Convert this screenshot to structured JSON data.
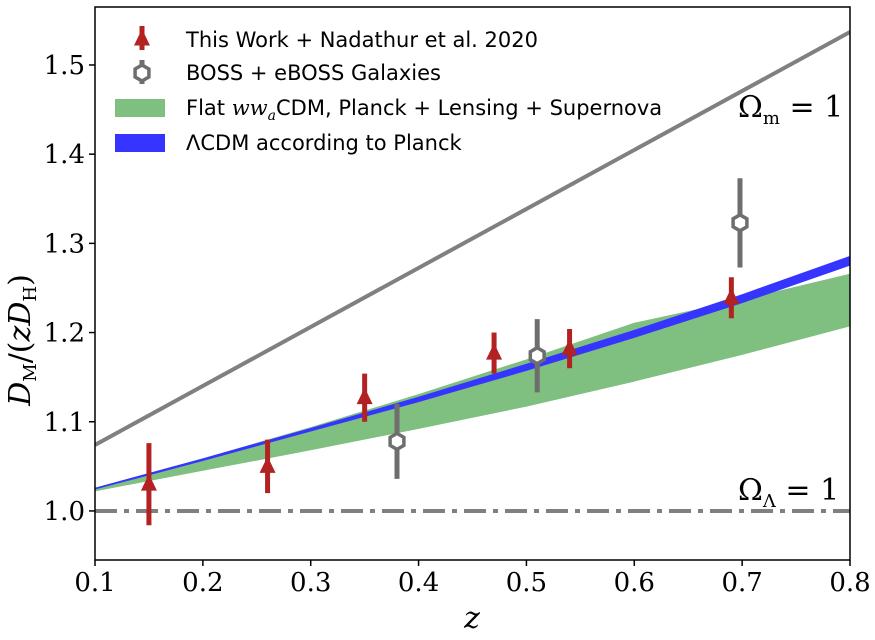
{
  "chart_data": {
    "type": "scatter",
    "xlabel": "z",
    "ylabel": "D_M/(zD_H)",
    "xlim": [
      0.1,
      0.8
    ],
    "ylim": [
      0.945,
      1.565
    ],
    "x_ticks": [
      0.1,
      0.2,
      0.3,
      0.4,
      0.5,
      0.6,
      0.7,
      0.8
    ],
    "x_tick_labels": [
      "0.1",
      "0.2",
      "0.3",
      "0.4",
      "0.5",
      "0.6",
      "0.7",
      "0.8"
    ],
    "y_ticks": [
      1.0,
      1.1,
      1.2,
      1.3,
      1.4,
      1.5
    ],
    "y_tick_labels": [
      "1.0",
      "1.1",
      "1.2",
      "1.3",
      "1.4",
      "1.5"
    ],
    "grid": false,
    "legend_position": "top-left",
    "series": [
      {
        "name": "This Work + Nadathur et al. 2020",
        "kind": "errorbar",
        "marker": "triangle",
        "color": "#b22222",
        "points": [
          {
            "x": 0.15,
            "y": 1.03,
            "err": 0.046
          },
          {
            "x": 0.26,
            "y": 1.05,
            "err": 0.03
          },
          {
            "x": 0.35,
            "y": 1.127,
            "err": 0.027
          },
          {
            "x": 0.47,
            "y": 1.177,
            "err": 0.023
          },
          {
            "x": 0.54,
            "y": 1.182,
            "err": 0.022
          },
          {
            "x": 0.69,
            "y": 1.239,
            "err": 0.023
          }
        ]
      },
      {
        "name": "BOSS + eBOSS Galaxies",
        "kind": "errorbar",
        "marker": "hexagon-open",
        "color": "#6e6e6e",
        "points": [
          {
            "x": 0.38,
            "y": 1.078,
            "err": 0.042
          },
          {
            "x": 0.51,
            "y": 1.174,
            "err": 0.041
          },
          {
            "x": 0.698,
            "y": 1.323,
            "err": 0.05
          }
        ]
      },
      {
        "name": "Flat ww_aCDM, Planck + Lensing + Supernova",
        "kind": "band",
        "color": "#7fbf7f",
        "x": [
          0.1,
          0.2,
          0.3,
          0.4,
          0.5,
          0.6,
          0.7,
          0.8
        ],
        "lower": [
          1.022,
          1.045,
          1.068,
          1.092,
          1.117,
          1.145,
          1.175,
          1.207
        ],
        "upper": [
          1.026,
          1.059,
          1.094,
          1.131,
          1.17,
          1.211,
          1.237,
          1.266
        ]
      },
      {
        "name": "ΛCDM according to Planck",
        "kind": "band",
        "color": "#3535ff",
        "x": [
          0.1,
          0.2,
          0.3,
          0.4,
          0.5,
          0.6,
          0.7,
          0.8
        ],
        "lower": [
          1.024,
          1.056,
          1.089,
          1.122,
          1.157,
          1.194,
          1.233,
          1.275
        ],
        "upper": [
          1.026,
          1.059,
          1.093,
          1.128,
          1.165,
          1.203,
          1.243,
          1.286
        ]
      },
      {
        "name": "Omega_m = 1",
        "kind": "line",
        "color": "#808080",
        "x": [
          0.1,
          0.8
        ],
        "y": [
          1.074,
          1.537
        ]
      },
      {
        "name": "Omega_Lambda = 1",
        "kind": "line",
        "style": "dashdot",
        "color": "#808080",
        "x": [
          0.1,
          0.8
        ],
        "y": [
          1.0,
          1.0
        ]
      }
    ],
    "legend": [
      {
        "label": "This Work + Nadathur et al. 2020",
        "icon": "triangle-errorbar"
      },
      {
        "label": "BOSS + eBOSS Galaxies",
        "icon": "hexagon-errorbar"
      },
      {
        "label_prefix": "Flat ",
        "label_math": "ww",
        "label_sub": "a",
        "label_suffix": "CDM, Planck + Lensing + Supernova",
        "icon": "green-patch"
      },
      {
        "label": "ΛCDM according to Planck",
        "icon": "blue-patch"
      }
    ],
    "annotations": [
      {
        "base": "Ω",
        "sub": "m",
        "rest": " = 1",
        "near_series": "Omega_m = 1"
      },
      {
        "base": "Ω",
        "sub": "Λ",
        "rest": " = 1",
        "near_series": "Omega_Lambda = 1"
      }
    ]
  }
}
